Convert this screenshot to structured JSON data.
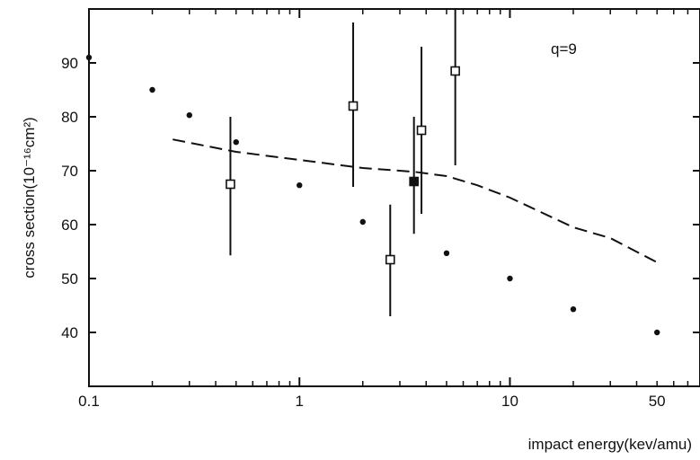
{
  "chart_data": {
    "type": "scatter",
    "xscale": "log",
    "xlim": [
      0.1,
      80
    ],
    "ylim": [
      30,
      100
    ],
    "xlabel": "impact energy(kev/amu)",
    "ylabel": "cross section(10⁻¹⁶cm²)",
    "annotation": "q=9",
    "x_ticks": [
      {
        "value": 0.1,
        "label": "0.1"
      },
      {
        "value": 1,
        "label": "1"
      },
      {
        "value": 10,
        "label": "10"
      },
      {
        "value": 50,
        "label": "50"
      }
    ],
    "y_ticks": [
      {
        "value": 40,
        "label": "40"
      },
      {
        "value": 50,
        "label": "50"
      },
      {
        "value": 60,
        "label": "60"
      },
      {
        "value": 70,
        "label": "70"
      },
      {
        "value": 80,
        "label": "80"
      },
      {
        "value": 90,
        "label": "90"
      }
    ],
    "series": [
      {
        "marker": "dot",
        "points": [
          {
            "x": 0.1,
            "y": 91.0
          },
          {
            "x": 0.2,
            "y": 85.0
          },
          {
            "x": 0.3,
            "y": 80.3
          },
          {
            "x": 0.5,
            "y": 75.3
          },
          {
            "x": 1.0,
            "y": 67.3
          },
          {
            "x": 2.0,
            "y": 60.5
          },
          {
            "x": 5.0,
            "y": 54.7
          },
          {
            "x": 10.0,
            "y": 50.0
          },
          {
            "x": 20.0,
            "y": 44.3
          },
          {
            "x": 50.0,
            "y": 40.0
          }
        ]
      },
      {
        "marker": "open-square",
        "points": [
          {
            "x": 0.47,
            "y": 67.5,
            "ymin": 54.3,
            "ymax": 80.0
          },
          {
            "x": 1.8,
            "y": 82.0,
            "ymin": 67.0,
            "ymax": 97.5
          },
          {
            "x": 2.7,
            "y": 53.5,
            "ymin": 43.0,
            "ymax": 63.7
          },
          {
            "x": 3.8,
            "y": 77.5,
            "ymin": 62.0,
            "ymax": 93.0
          },
          {
            "x": 5.5,
            "y": 88.5,
            "ymin": 71.0,
            "ymax": 100
          }
        ]
      },
      {
        "marker": "filled-square",
        "points": [
          {
            "x": 3.5,
            "y": 68.0,
            "ymin": 58.3,
            "ymax": 80.0
          }
        ]
      },
      {
        "marker": "dashed-line",
        "points": [
          {
            "x": 0.25,
            "y": 75.8
          },
          {
            "x": 0.5,
            "y": 73.5
          },
          {
            "x": 1.0,
            "y": 72.0
          },
          {
            "x": 2.0,
            "y": 70.5
          },
          {
            "x": 3.5,
            "y": 69.8
          },
          {
            "x": 5.0,
            "y": 69.0
          },
          {
            "x": 7.0,
            "y": 67.3
          },
          {
            "x": 10.0,
            "y": 65.0
          },
          {
            "x": 20.0,
            "y": 59.5
          },
          {
            "x": 30.0,
            "y": 57.5
          },
          {
            "x": 50.0,
            "y": 53.0
          }
        ]
      }
    ]
  }
}
